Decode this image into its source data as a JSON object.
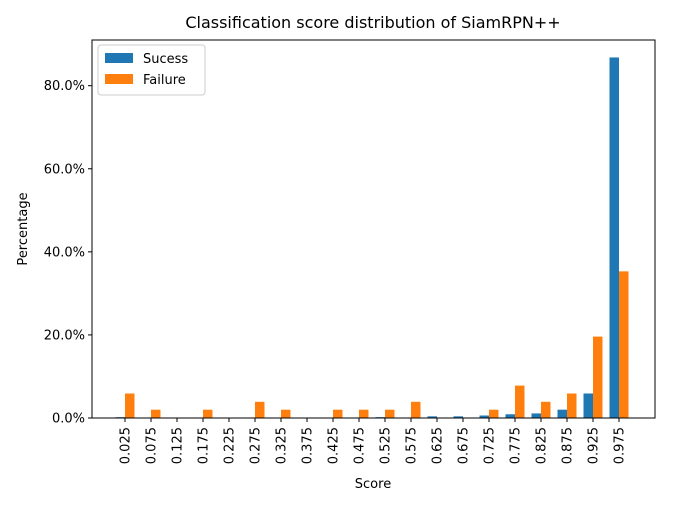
{
  "chart_data": {
    "type": "bar",
    "title": "Classification score distribution of SiamRPN++",
    "xlabel": "Score",
    "ylabel": "Percentage",
    "categories": [
      "0.025",
      "0.075",
      "0.125",
      "0.175",
      "0.225",
      "0.275",
      "0.325",
      "0.375",
      "0.425",
      "0.475",
      "0.525",
      "0.575",
      "0.625",
      "0.675",
      "0.725",
      "0.775",
      "0.825",
      "0.875",
      "0.925",
      "0.975"
    ],
    "series": [
      {
        "name": "Sucess",
        "color": "#1f77b4",
        "values": [
          0.2,
          0,
          0,
          0,
          0,
          0,
          0,
          0,
          0,
          0,
          0.2,
          0,
          0.4,
          0.4,
          0.6,
          0.9,
          1.1,
          2.0,
          5.9,
          86.8
        ]
      },
      {
        "name": "Failure",
        "color": "#ff7f0e",
        "values": [
          5.9,
          2.0,
          0,
          2.0,
          0,
          3.9,
          2.0,
          0,
          2.0,
          2.0,
          2.0,
          3.9,
          0,
          0,
          2.0,
          7.8,
          3.9,
          5.9,
          19.6,
          35.3
        ]
      }
    ],
    "ylim": [
      0,
      91
    ],
    "yticks": [
      0,
      20,
      40,
      60,
      80
    ],
    "ytick_labels": [
      "0.0%",
      "20.0%",
      "40.0%",
      "60.0%",
      "80.0%"
    ],
    "legend_position": "upper-left",
    "grid": false
  }
}
